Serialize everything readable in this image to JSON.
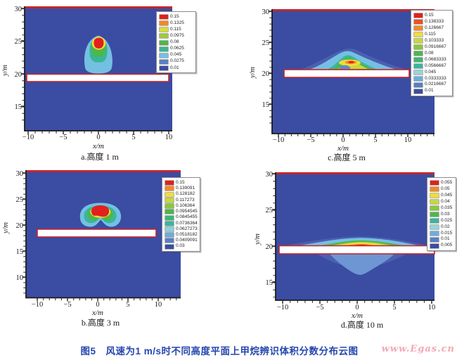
{
  "figure": {
    "caption": "图5　风速为1 m/s时不同高度平面上甲烷辨识体积分数分布云图",
    "watermark": "www.Egas.cn"
  },
  "colors": {
    "plot_background": "#3b4ca3",
    "wall_line_red": "#c2262c",
    "slab_white": "#ffffff",
    "caption_blue": "#2646ae",
    "watermark_pink": "#f2a9b4"
  },
  "panels": {
    "a": {
      "caption": "a.高度 1 m",
      "xlabel": "x/m",
      "ylabel": "y/m",
      "x_ticks": [
        "−10",
        "−5",
        "0",
        "5",
        "10"
      ],
      "y_ticks": [
        "30",
        "25",
        "20",
        "15"
      ],
      "legend": {
        "entries": [
          {
            "value": "0.15",
            "color": "#e2201d"
          },
          {
            "value": "0.1325",
            "color": "#f28a24"
          },
          {
            "value": "0.115",
            "color": "#d9dd3a"
          },
          {
            "value": "0.0975",
            "color": "#9ccb3b"
          },
          {
            "value": "0.08",
            "color": "#4eb748"
          },
          {
            "value": "0.0625",
            "color": "#3ab690"
          },
          {
            "value": "0.045",
            "color": "#74c0e2"
          },
          {
            "value": "0.0275",
            "color": "#5a7fc3"
          },
          {
            "value": "0.01",
            "color": "#3b4ca3"
          }
        ]
      }
    },
    "b": {
      "caption": "b.高度 3 m",
      "xlabel": "x/m",
      "ylabel": "y/m",
      "x_ticks": [
        "−10",
        "−5",
        "0",
        "5",
        "10"
      ],
      "y_ticks": [
        "30",
        "25",
        "20",
        "15",
        "10"
      ],
      "legend": {
        "entries": [
          {
            "value": "0.15",
            "color": "#e2201d"
          },
          {
            "value": "0.139091",
            "color": "#f28a24"
          },
          {
            "value": "0.128182",
            "color": "#f0dc3a"
          },
          {
            "value": "0.117273",
            "color": "#c6d83d"
          },
          {
            "value": "0.106364",
            "color": "#8cc63f"
          },
          {
            "value": "0.0954545",
            "color": "#4eb748"
          },
          {
            "value": "0.0845455",
            "color": "#3cb874"
          },
          {
            "value": "0.0736364",
            "color": "#3ab6a0"
          },
          {
            "value": "0.0627273",
            "color": "#8fd0da"
          },
          {
            "value": "0.0518182",
            "color": "#6aaede"
          },
          {
            "value": "0.0409091",
            "color": "#5a7fc3"
          },
          {
            "value": "0.03",
            "color": "#3b4ca3"
          }
        ]
      }
    },
    "c": {
      "caption": "c.高度 5 m",
      "xlabel": "x/m",
      "ylabel": "y/m",
      "x_ticks": [
        "−10",
        "−5",
        "0",
        "5",
        "10"
      ],
      "y_ticks": [
        "30",
        "25",
        "20",
        "15"
      ],
      "legend": {
        "entries": [
          {
            "value": "0.15",
            "color": "#e2201d"
          },
          {
            "value": "0.138333",
            "color": "#ea5326"
          },
          {
            "value": "0.126667",
            "color": "#f28a24"
          },
          {
            "value": "0.115",
            "color": "#f0dc3a"
          },
          {
            "value": "0.103333",
            "color": "#c6d83d"
          },
          {
            "value": "0.0916667",
            "color": "#8cc63f"
          },
          {
            "value": "0.08",
            "color": "#4eb748"
          },
          {
            "value": "0.0683333",
            "color": "#3cb874"
          },
          {
            "value": "0.0566667",
            "color": "#3ab6a0"
          },
          {
            "value": "0.045",
            "color": "#9ad4d2"
          },
          {
            "value": "0.0333333",
            "color": "#6aaede"
          },
          {
            "value": "0.0216667",
            "color": "#5a7fc3"
          },
          {
            "value": "0.01",
            "color": "#3b4ca3"
          }
        ]
      }
    },
    "d": {
      "caption": "d.高度 10 m",
      "xlabel": "x/m",
      "ylabel": "y/m",
      "x_ticks": [
        "−10",
        "−5",
        "0",
        "5",
        "10"
      ],
      "y_ticks": [
        "30",
        "25",
        "20",
        "15"
      ],
      "legend": {
        "entries": [
          {
            "value": "0.055",
            "color": "#e2201d"
          },
          {
            "value": "0.05",
            "color": "#f28a24"
          },
          {
            "value": "0.045",
            "color": "#f0dc3a"
          },
          {
            "value": "0.04",
            "color": "#c6d83d"
          },
          {
            "value": "0.035",
            "color": "#8cc63f"
          },
          {
            "value": "0.03",
            "color": "#4eb748"
          },
          {
            "value": "0.025",
            "color": "#3ab6a0"
          },
          {
            "value": "0.02",
            "color": "#9ad4d2"
          },
          {
            "value": "0.015",
            "color": "#6aaede"
          },
          {
            "value": "0.01",
            "color": "#5a7fc3"
          },
          {
            "value": "0.005",
            "color": "#3b4ca3"
          }
        ]
      }
    }
  },
  "chart_data": [
    {
      "type": "heatmap",
      "panel": "a",
      "subtitle": "a.高度 1 m",
      "height_m": 1,
      "wind_speed": "1 m/s",
      "quantity": "甲烷辨识体积分数 (methane volume fraction)",
      "xlabel": "x/m",
      "ylabel": "y/m",
      "xlim": [
        -10.5,
        10.5
      ],
      "ylim": [
        11,
        30
      ],
      "x_ticks": [
        -10,
        -5,
        0,
        5,
        10
      ],
      "y_ticks": [
        30,
        25,
        20,
        15
      ],
      "contour_levels": [
        0.15,
        0.1325,
        0.115,
        0.0975,
        0.08,
        0.0625,
        0.045,
        0.0275,
        0.01
      ],
      "features": {
        "wall_line_y": 30,
        "slab": {
          "y": 20,
          "x_range": [
            -10,
            10
          ]
        },
        "plume": {
          "shape": "teardrop above slab",
          "center_x": 0,
          "x_range": [
            -2.2,
            2.3
          ],
          "y_range": [
            20.2,
            26
          ],
          "peak_location": {
            "x": 0.1,
            "y": 24.8
          },
          "peak_level": 0.15
        }
      }
    },
    {
      "type": "heatmap",
      "panel": "b",
      "subtitle": "b.高度 3 m",
      "height_m": 3,
      "wind_speed": "1 m/s",
      "quantity": "甲烷辨识体积分数 (methane volume fraction)",
      "xlabel": "x/m",
      "ylabel": "y/m",
      "xlim": [
        -11.5,
        13
      ],
      "ylim": [
        6,
        30
      ],
      "x_ticks": [
        -10,
        -5,
        0,
        5,
        10
      ],
      "y_ticks": [
        30,
        25,
        20,
        15,
        10
      ],
      "contour_levels": [
        0.15,
        0.139091,
        0.128182,
        0.117273,
        0.106364,
        0.0954545,
        0.0845455,
        0.0736364,
        0.0627273,
        0.0518182,
        0.0409091,
        0.03
      ],
      "features": {
        "wall_line_y": 30,
        "slab": {
          "y": 19.5,
          "x_range": [
            -10,
            9.5
          ]
        },
        "plume": {
          "shape": "dome with notched underside",
          "center_x": 0.3,
          "x_range": [
            -2.9,
            3.6
          ],
          "y_range": [
            21.3,
            25.2
          ],
          "peak_location": {
            "x": 0.3,
            "y": 23.8
          },
          "peak_level": 0.15
        }
      }
    },
    {
      "type": "heatmap",
      "panel": "c",
      "subtitle": "c.高度 5 m",
      "height_m": 5,
      "wind_speed": "1 m/s",
      "quantity": "甲烷辨识体积分数 (methane volume fraction)",
      "xlabel": "x/m",
      "ylabel": "y/m",
      "xlim": [
        -11,
        14
      ],
      "ylim": [
        10,
        30
      ],
      "x_ticks": [
        -10,
        -5,
        0,
        5,
        10
      ],
      "y_ticks": [
        30,
        25,
        20,
        15
      ],
      "contour_levels": [
        0.15,
        0.138333,
        0.126667,
        0.115,
        0.103333,
        0.0916667,
        0.08,
        0.0683333,
        0.0566667,
        0.045,
        0.0333333,
        0.0216667,
        0.01
      ],
      "features": {
        "wall_line_y": 30,
        "slab": {
          "y": 20,
          "x_range": [
            -9.2,
            10.3
          ]
        },
        "plume": {
          "shape": "broad low mound on slab",
          "center_x": 0.5,
          "x_range": [
            -6,
            6.5
          ],
          "y_range": [
            20,
            24.3
          ],
          "peak_location": {
            "x": 1,
            "y": 22.5
          },
          "peak_level": 0.15
        }
      }
    },
    {
      "type": "heatmap",
      "panel": "d",
      "subtitle": "d.高度 10 m",
      "height_m": 10,
      "wind_speed": "1 m/s",
      "quantity": "甲烷辨识体积分数 (methane volume fraction)",
      "xlabel": "x/m",
      "ylabel": "y/m",
      "xlim": [
        -10.9,
        10.3
      ],
      "ylim": [
        12.5,
        30
      ],
      "x_ticks": [
        -10,
        -5,
        0,
        5,
        10
      ],
      "y_ticks": [
        30,
        25,
        20,
        15
      ],
      "contour_levels": [
        0.055,
        0.05,
        0.045,
        0.04,
        0.035,
        0.03,
        0.025,
        0.02,
        0.015,
        0.01,
        0.005
      ],
      "features": {
        "wall_line_y": 30,
        "slab": {
          "y": 20,
          "x_range": [
            -10.5,
            10.3
          ]
        },
        "plume": {
          "shape": "thin wide band hugging slab top",
          "center_x": 1,
          "x_range": [
            -8,
            8.5
          ],
          "y_range": [
            20,
            22.3
          ],
          "peak_location": {
            "x": 1,
            "y": 20.3
          },
          "peak_level": 0.055
        },
        "secondary_lobe_below_slab": {
          "x_range": [
            -2.5,
            4.5
          ],
          "y_range": [
            16.8,
            19.5
          ],
          "level": 0.01
        }
      }
    }
  ]
}
